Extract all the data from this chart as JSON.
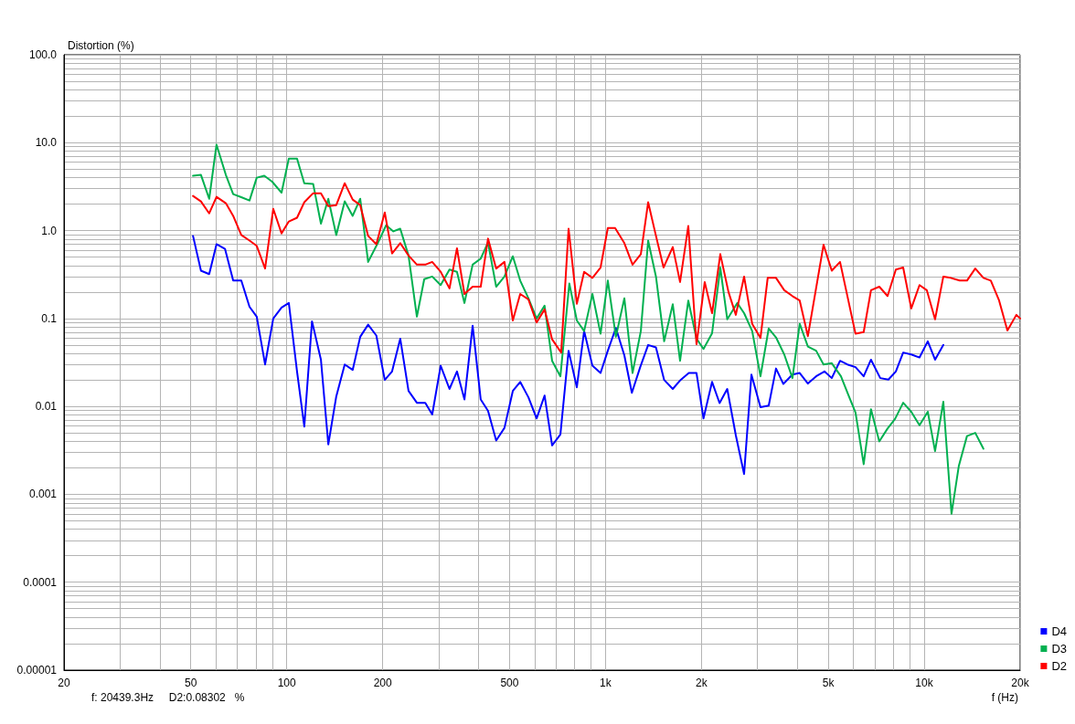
{
  "chart_data": {
    "type": "line",
    "ylabel": "Distortion (%)",
    "xlabel": "f (Hz)",
    "annotations": [
      "f: 20439.3Hz     D2:0.08302   %"
    ],
    "log": "xy",
    "grid": true,
    "legend": "bottom right",
    "marker": "none",
    "line_style": "solid",
    "xlim": [
      20,
      20000
    ],
    "xticks": [
      20,
      50,
      100,
      200,
      500,
      {
        "value": 1000,
        "label": "1k"
      },
      {
        "value": 2000,
        "label": "2k"
      },
      {
        "value": 5000,
        "label": "5k"
      },
      {
        "value": 10000,
        "label": "10k"
      },
      {
        "value": 20000,
        "label": "20k"
      }
    ],
    "ylim": [
      1e-05,
      100
    ],
    "yticks": [
      {
        "value": 100,
        "label": "100.0"
      },
      {
        "value": 10,
        "label": "10.0"
      },
      {
        "value": 1,
        "label": "1.0"
      },
      0.1,
      0.01,
      0.001,
      0.0001,
      {
        "value": 1e-05,
        "label": "0.00001"
      }
    ],
    "series": [
      {
        "name": "D4",
        "color": "#0000ff",
        "x": [
          50.8,
          53.8,
          57.1,
          60.2,
          64,
          67.9,
          72,
          76.4,
          80.5,
          85.5,
          90.7,
          96.3,
          101.5,
          107.7,
          113.5,
          120,
          128,
          135,
          143,
          152,
          161,
          170,
          180,
          191,
          203,
          214,
          227,
          241,
          256,
          272,
          286,
          304,
          324,
          342,
          361,
          383,
          406,
          428,
          454,
          482,
          512,
          540,
          573,
          608,
          644,
          680,
          722,
          766,
          813,
          857,
          910,
          965,
          1017,
          1078,
          1146,
          1210,
          1285,
          1361,
          1440,
          1528,
          1626,
          1720,
          1826,
          1930,
          2030,
          2160,
          2280,
          2410,
          2564,
          2722,
          2870,
          3064,
          3252,
          3428,
          3614,
          3860,
          4068,
          4316,
          4580,
          4864,
          5128,
          5444,
          5740,
          6088,
          6458,
          6808,
          7280,
          7720,
          8148,
          8590,
          9106,
          9666,
          10260,
          10816,
          11482
        ],
        "values": [
          0.87,
          0.35,
          0.32,
          0.7,
          0.62,
          0.27,
          0.27,
          0.136,
          0.105,
          0.03,
          0.1,
          0.133,
          0.15,
          0.025,
          0.0059,
          0.093,
          0.034,
          0.0037,
          0.013,
          0.03,
          0.026,
          0.062,
          0.085,
          0.064,
          0.02,
          0.025,
          0.059,
          0.015,
          0.011,
          0.011,
          0.0081,
          0.029,
          0.0158,
          0.025,
          0.012,
          0.083,
          0.012,
          0.0089,
          0.0041,
          0.0057,
          0.015,
          0.019,
          0.0127,
          0.0073,
          0.0133,
          0.0036,
          0.0048,
          0.043,
          0.0165,
          0.072,
          0.029,
          0.024,
          0.043,
          0.078,
          0.038,
          0.0143,
          0.028,
          0.05,
          0.047,
          0.02,
          0.0158,
          0.02,
          0.024,
          0.024,
          0.0073,
          0.019,
          0.0109,
          0.0158,
          0.0047,
          0.0017,
          0.023,
          0.0098,
          0.0102,
          0.027,
          0.018,
          0.023,
          0.024,
          0.0182,
          0.022,
          0.025,
          0.021,
          0.033,
          0.03,
          0.028,
          0.022,
          0.034,
          0.021,
          0.0202,
          0.025,
          0.041,
          0.039,
          0.036,
          0.055,
          0.034,
          0.05
        ]
      },
      {
        "name": "D3",
        "color": "#00b050",
        "x": [
          50.8,
          53.8,
          57.1,
          60.2,
          64.4,
          67.9,
          72,
          76.4,
          80.5,
          85,
          90,
          96.3,
          101.5,
          107.7,
          113.5,
          121,
          128,
          135,
          143,
          152,
          161,
          170,
          180,
          193,
          205,
          216,
          227,
          241,
          256,
          270,
          286,
          304,
          324,
          342,
          361,
          383,
          406,
          428,
          454,
          482,
          512,
          540,
          573,
          608,
          644,
          680,
          722,
          770,
          813,
          857,
          910,
          965,
          1017,
          1078,
          1146,
          1216,
          1291,
          1361,
          1440,
          1528,
          1626,
          1714,
          1819,
          1930,
          2030,
          2160,
          2292,
          2410,
          2590,
          2722,
          2886,
          3064,
          3252,
          3428,
          3638,
          3860,
          4068,
          4316,
          4580,
          4832,
          5128,
          5480,
          5778,
          6088,
          6458,
          6808,
          7228,
          7674,
          8100,
          8590,
          9106,
          9666,
          10260,
          10816,
          11482,
          12180,
          12840,
          13620,
          14460,
          15340
        ],
        "values": [
          4.2,
          4.3,
          2.3,
          9.5,
          4.3,
          2.6,
          2.4,
          2.2,
          4.0,
          4.2,
          3.6,
          2.7,
          6.6,
          6.6,
          3.46,
          3.4,
          1.2,
          2.3,
          0.89,
          2.15,
          1.47,
          2.3,
          0.44,
          0.72,
          1.15,
          0.98,
          1.05,
          0.52,
          0.105,
          0.28,
          0.3,
          0.24,
          0.36,
          0.34,
          0.15,
          0.41,
          0.48,
          0.73,
          0.23,
          0.3,
          0.51,
          0.27,
          0.17,
          0.1,
          0.14,
          0.033,
          0.022,
          0.25,
          0.095,
          0.072,
          0.19,
          0.067,
          0.27,
          0.062,
          0.17,
          0.024,
          0.072,
          0.77,
          0.3,
          0.055,
          0.145,
          0.033,
          0.16,
          0.059,
          0.045,
          0.068,
          0.38,
          0.098,
          0.15,
          0.115,
          0.072,
          0.022,
          0.077,
          0.061,
          0.039,
          0.021,
          0.087,
          0.048,
          0.043,
          0.03,
          0.031,
          0.022,
          0.0136,
          0.0085,
          0.0022,
          0.0093,
          0.004,
          0.0056,
          0.0072,
          0.011,
          0.0087,
          0.0061,
          0.0087,
          0.0031,
          0.0113,
          0.0006,
          0.0021,
          0.0046,
          0.005,
          0.0033
        ]
      },
      {
        "name": "D2",
        "color": "#ff0000",
        "x": [
          50.8,
          53.8,
          57.1,
          60.2,
          64.4,
          67.9,
          72,
          76.4,
          80.5,
          85.5,
          90.7,
          96.3,
          101.5,
          107.7,
          113.5,
          121,
          128,
          135,
          143,
          152,
          161,
          170,
          180,
          191,
          203,
          214,
          227,
          241,
          256,
          272,
          286,
          304,
          324,
          342,
          361,
          383,
          406,
          428,
          454,
          482,
          512,
          540,
          573,
          608,
          644,
          680,
          726,
          766,
          813,
          857,
          910,
          965,
          1017,
          1072,
          1146,
          1216,
          1291,
          1361,
          1434,
          1521,
          1626,
          1714,
          1819,
          1930,
          2048,
          2160,
          2292,
          2432,
          2564,
          2722,
          2886,
          3064,
          3228,
          3428,
          3638,
          3860,
          4068,
          4316,
          4832,
          5128,
          5444,
          6088,
          6458,
          6808,
          7228,
          7674,
          8148,
          8590,
          9106,
          9666,
          10188,
          10816,
          11482,
          12106,
          12920,
          13620,
          14460,
          15340,
          16180,
          17180,
          18240,
          19460,
          20000
        ],
        "values": [
          2.48,
          2.15,
          1.57,
          2.42,
          2.05,
          1.47,
          0.89,
          0.77,
          0.67,
          0.37,
          1.77,
          0.93,
          1.27,
          1.4,
          2.1,
          2.66,
          2.66,
          1.9,
          1.95,
          3.46,
          2.25,
          1.95,
          0.87,
          0.7,
          1.61,
          0.55,
          0.72,
          0.52,
          0.41,
          0.41,
          0.44,
          0.34,
          0.22,
          0.63,
          0.19,
          0.23,
          0.23,
          0.81,
          0.37,
          0.44,
          0.095,
          0.19,
          0.165,
          0.09,
          0.127,
          0.058,
          0.041,
          1.05,
          0.147,
          0.34,
          0.29,
          0.38,
          1.07,
          1.07,
          0.72,
          0.41,
          0.54,
          2.1,
          0.93,
          0.38,
          0.65,
          0.26,
          1.13,
          0.051,
          0.26,
          0.115,
          0.54,
          0.2,
          0.11,
          0.3,
          0.087,
          0.06,
          0.29,
          0.29,
          0.21,
          0.18,
          0.16,
          0.063,
          0.69,
          0.35,
          0.44,
          0.067,
          0.07,
          0.21,
          0.23,
          0.18,
          0.36,
          0.38,
          0.13,
          0.24,
          0.21,
          0.098,
          0.3,
          0.29,
          0.27,
          0.27,
          0.37,
          0.29,
          0.27,
          0.16,
          0.073,
          0.11,
          0.1
        ]
      }
    ]
  }
}
